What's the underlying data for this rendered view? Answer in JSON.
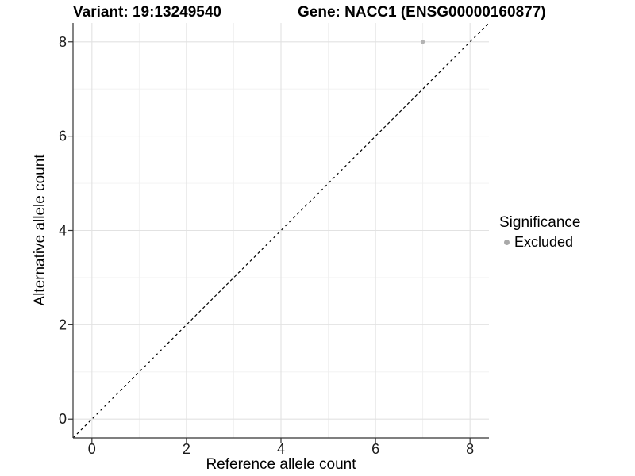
{
  "chart_data": {
    "type": "scatter",
    "title_left": "Variant: 19:13249540",
    "title_right": "Gene: NACC1 (ENSG00000160877)",
    "xlabel": "Reference allele count",
    "ylabel": "Alternative allele count",
    "xlim": [
      -0.4,
      8.4
    ],
    "ylim": [
      -0.4,
      8.4
    ],
    "xticks": [
      0,
      2,
      4,
      6,
      8
    ],
    "yticks": [
      0,
      2,
      4,
      6,
      8
    ],
    "xminor": [
      1,
      3,
      5,
      7
    ],
    "yminor": [
      1,
      3,
      5,
      7
    ],
    "grid": "on",
    "identity_line": true,
    "series": [
      {
        "name": "Excluded",
        "points": [
          {
            "x": 7,
            "y": 8
          }
        ],
        "color": "#b3b3b3"
      }
    ],
    "legend": {
      "title": "Significance",
      "position": "right",
      "items": [
        {
          "label": "Excluded",
          "color": "#a9a9a9"
        }
      ]
    },
    "colors": {
      "background": "#ffffff",
      "grid_major": "#e2e2e2",
      "grid_minor": "#f0f0f0",
      "axis_line": "#333333",
      "tick_text": "#1a1a1a",
      "identity_line": "#000000",
      "point": "#b3b3b3"
    }
  }
}
